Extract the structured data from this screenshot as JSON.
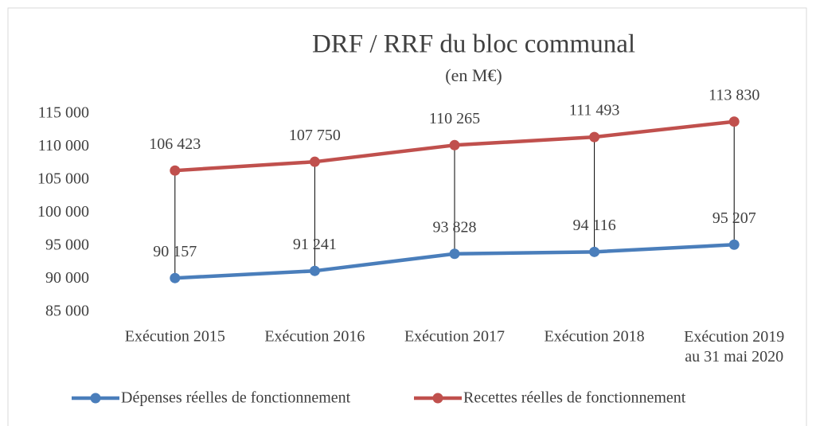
{
  "chart_data": {
    "type": "line",
    "title": "DRF / RRF du bloc communal",
    "subtitle": "(en M€)",
    "categories": [
      "Exécution 2015",
      "Exécution 2016",
      "Exécution 2017",
      "Exécution 2018",
      "Exécution 2019\nau 31 mai 2020"
    ],
    "series": [
      {
        "name": "Dépenses réelles de fonctionnement",
        "color": "#4a7ebb",
        "values": [
          90157,
          91241,
          93828,
          94116,
          95207
        ],
        "value_labels": [
          "90 157",
          "91 241",
          "93 828",
          "94 116",
          "95 207"
        ]
      },
      {
        "name": "Recettes réelles de fonctionnement",
        "color": "#c0504d",
        "values": [
          106423,
          107750,
          110265,
          111493,
          113830
        ],
        "value_labels": [
          "106 423",
          "107 750",
          "110 265",
          "111 493",
          "113 830"
        ]
      }
    ],
    "ylim": [
      85000,
      115000
    ],
    "yticks": [
      {
        "value": 85000,
        "label": "85 000"
      },
      {
        "value": 90000,
        "label": "90 000"
      },
      {
        "value": 95000,
        "label": "95 000"
      },
      {
        "value": 100000,
        "label": "100 000"
      },
      {
        "value": 105000,
        "label": "105 000"
      },
      {
        "value": 110000,
        "label": "110 000"
      },
      {
        "value": 115000,
        "label": "115 000"
      }
    ],
    "grid": false,
    "legend": "bottom"
  }
}
